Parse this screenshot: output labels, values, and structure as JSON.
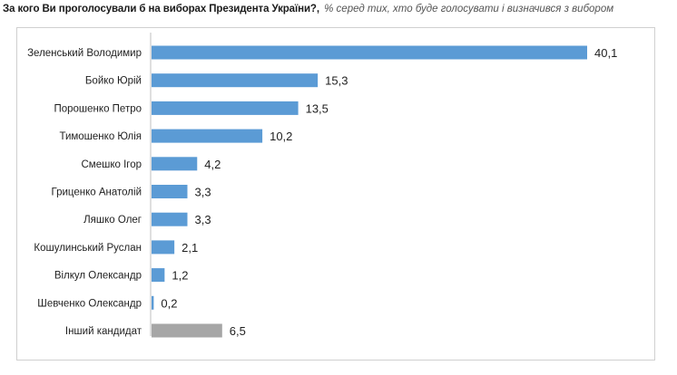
{
  "header": {
    "question": "За кого Ви проголосували б на виборах Президента України?,",
    "subtitle": "% серед тих, хто буде голосувати і визначився з вибором"
  },
  "colors": {
    "bar": "#5b9bd5",
    "other_bar": "#a6a6a6",
    "axis": "#bfbfbf"
  },
  "chart_data": {
    "type": "bar",
    "orientation": "horizontal",
    "categories": [
      "Зеленський Володимир",
      "Бойко Юрій",
      "Порошенко Петро",
      "Тимошенко Юлія",
      "Смешко Ігор",
      "Гриценко Анатолій",
      "Ляшко Олег",
      "Кошулинський Руслан",
      "Вілкул Олександр",
      "Шевченко Олександр",
      "Інший кандидат"
    ],
    "values": [
      40.1,
      15.3,
      13.5,
      10.2,
      4.2,
      3.3,
      3.3,
      2.1,
      1.2,
      0.2,
      6.5
    ],
    "value_labels": [
      "40,1",
      "15,3",
      "13,5",
      "10,2",
      "4,2",
      "3,3",
      "3,3",
      "2,1",
      "1,2",
      "0,2",
      "6,5"
    ],
    "highlight_other_index": 10,
    "xlim": [
      0,
      40.1
    ],
    "grid": false,
    "legend": "none"
  }
}
